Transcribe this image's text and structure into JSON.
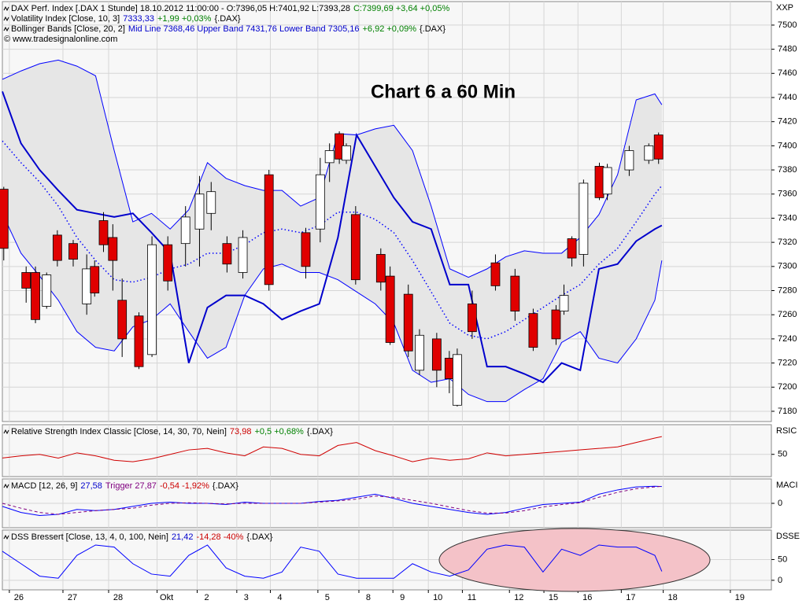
{
  "chart_data": [
    {
      "type": "candlestick",
      "unit_label": "XXP",
      "header": [
        [
          {
            "text": "DAX Perf. Index [.DAX  1 Stunde] 18.10.2012 11:00:00 - O:7396,05 H:7401,92 L:7393,28",
            "color": "#000000"
          },
          {
            "text": "C:7399,69 +3,64 +0,05%",
            "color": "#008000"
          }
        ],
        [
          {
            "text": "Volatility Index [Close, 10, 3]",
            "color": "#000000"
          },
          {
            "text": "7333,33",
            "color": "#0000cc"
          },
          {
            "text": "+1,99 +0,03%",
            "color": "#008000"
          },
          {
            "text": "{.DAX}",
            "color": "#000000"
          }
        ],
        [
          {
            "text": "Bollinger Bands [Close, 20, 2]",
            "color": "#000000"
          },
          {
            "text": "Mid Line 7368,46 Upper Band 7431,76 Lower Band 7305,16",
            "color": "#0000cc"
          },
          {
            "text": "+6,92 +0,09%",
            "color": "#008000"
          },
          {
            "text": "{.DAX}",
            "color": "#000000"
          }
        ]
      ],
      "source": "© www.tradesignalonline.com",
      "annotation": "Chart 6 a 60 Min",
      "xlim": [
        0,
        165
      ],
      "ylim": [
        7171.5,
        7519.5
      ],
      "yticks": [
        7180,
        7200,
        7220,
        7240,
        7260,
        7280,
        7300,
        7320,
        7340,
        7360,
        7380,
        7400,
        7420,
        7440,
        7460,
        7480,
        7500
      ],
      "grid": true,
      "band_fill": "#e6e6e6",
      "up_color": "#ffffff",
      "down_color": "#e00000",
      "candles": {
        "x": [
          0.3,
          5.1,
          7.1,
          9.5,
          11.8,
          15.2,
          18.1,
          19.8,
          21.7,
          23.7,
          25.7,
          29.3,
          32.1,
          35.5,
          39.3,
          42.3,
          44.8,
          48.2,
          51.6,
          57.2,
          65.1,
          68.2,
          70.2,
          72.3,
          73.8,
          75.8,
          81.2,
          83.2,
          87.1,
          89.5,
          93.2,
          95.9,
          97.6,
          100.8,
          105.8,
          110,
          113.9,
          118.8,
          120.5,
          122.2,
          124.7,
          128.1,
          129.8,
          134.5,
          138.7,
          140.8
        ],
        "open": [
          7364,
          7295,
          7295,
          7267,
          7326,
          7319,
          7269,
          7300,
          7338,
          7324,
          7272,
          7259,
          7227,
          7318,
          7319,
          7331,
          7344,
          7319,
          7295,
          7376,
          7328,
          7331,
          7386,
          7410,
          7388,
          7343,
          7310,
          7292,
          7277,
          7214,
          7240,
          7224,
          7185,
          7269,
          7303,
          7292,
          7261,
          7264,
          7263,
          7323,
          7310,
          7383,
          7360,
          7380,
          7388,
          7409
        ],
        "high": [
          7366,
          7300,
          7300,
          7295,
          7330,
          7322,
          7310,
          7305,
          7345,
          7335,
          7290,
          7262,
          7325,
          7325,
          7350,
          7375,
          7370,
          7325,
          7330,
          7380,
          7332,
          7390,
          7402,
          7412,
          7402,
          7350,
          7315,
          7300,
          7285,
          7248,
          7245,
          7230,
          7232,
          7280,
          7310,
          7298,
          7265,
          7268,
          7285,
          7325,
          7372,
          7386,
          7385,
          7400,
          7402,
          7411
        ],
        "low": [
          7305,
          7270,
          7253,
          7265,
          7300,
          7300,
          7260,
          7275,
          7312,
          7280,
          7225,
          7215,
          7225,
          7280,
          7300,
          7300,
          7330,
          7295,
          7290,
          7280,
          7290,
          7320,
          7370,
          7385,
          7385,
          7285,
          7280,
          7235,
          7225,
          7210,
          7200,
          7195,
          7184,
          7240,
          7280,
          7255,
          7230,
          7235,
          7260,
          7300,
          7300,
          7355,
          7355,
          7375,
          7385,
          7385
        ],
        "close": [
          7315,
          7282,
          7256,
          7293,
          7305,
          7306,
          7298,
          7278,
          7318,
          7305,
          7240,
          7217,
          7318,
          7288,
          7341,
          7360,
          7362,
          7302,
          7324,
          7285,
          7300,
          7376,
          7396,
          7389,
          7400,
          7289,
          7287,
          7237,
          7230,
          7243,
          7214,
          7207,
          7227,
          7246,
          7284,
          7263,
          7233,
          7240,
          7276,
          7307,
          7369,
          7357,
          7382,
          7396,
          7400,
          7389
        ]
      },
      "x": [
        0,
        4,
        8,
        12,
        16,
        20,
        24,
        28,
        32,
        36,
        40,
        44,
        48,
        52,
        56,
        60,
        64,
        68,
        72,
        76,
        80,
        84,
        88,
        92,
        96,
        100,
        104,
        108,
        112,
        116,
        120,
        124,
        128,
        132,
        136,
        140,
        141.5
      ],
      "series": [
        {
          "color": "#0000ff",
          "width": 1,
          "dash": "none",
          "values": [
            7455,
            7462,
            7468,
            7471,
            7466,
            7458,
            7396,
            7337,
            7344,
            7331,
            7347,
            7386,
            7373,
            7367,
            7363,
            7363,
            7350,
            7357,
            7410,
            7409,
            7414,
            7417,
            7396,
            7350,
            7298,
            7291,
            7298,
            7308,
            7313,
            7311,
            7311,
            7324,
            7343,
            7376,
            7438,
            7443,
            7434
          ]
        },
        {
          "color": "#0000ff",
          "width": 1,
          "dash": "none",
          "values": [
            7344,
            7311,
            7292,
            7272,
            7246,
            7233,
            7230,
            7250,
            7256,
            7269,
            7246,
            7224,
            7233,
            7276,
            7298,
            7302,
            7295,
            7295,
            7289,
            7279,
            7269,
            7253,
            7214,
            7204,
            7207,
            7194,
            7188,
            7188,
            7198,
            7207,
            7237,
            7246,
            7224,
            7220,
            7240,
            7272,
            7305
          ]
        },
        {
          "color": "#0000ff",
          "width": 1.5,
          "dash": "1.5 3",
          "values": [
            7404,
            7386,
            7370,
            7350,
            7324,
            7305,
            7289,
            7287,
            7291,
            7298,
            7302,
            7311,
            7311,
            7318,
            7328,
            7331,
            7328,
            7334,
            7345,
            7345,
            7339,
            7328,
            7305,
            7279,
            7253,
            7243,
            7240,
            7246,
            7256,
            7266,
            7276,
            7285,
            7302,
            7315,
            7337,
            7360,
            7367
          ]
        },
        {
          "color": "#0000cc",
          "width": 2,
          "dash": "none",
          "values": [
            7445,
            7402,
            7380,
            7363,
            7347,
            7344,
            7341,
            7344,
            7328,
            7311,
            7220,
            7266,
            7276,
            7276,
            7269,
            7256,
            7263,
            7269,
            7324,
            7409,
            7383,
            7357,
            7337,
            7331,
            7285,
            7285,
            7217,
            7217,
            7211,
            7204,
            7220,
            7214,
            7298,
            7302,
            7321,
            7331,
            7334
          ]
        }
      ]
    },
    {
      "type": "line",
      "unit_label": "RSIC",
      "header": [
        [
          {
            "text": "Relative Strength Index Classic [Close, 14, 30, 70, Nein]",
            "color": "#000000"
          },
          {
            "text": "73,98",
            "color": "#cc0000"
          },
          {
            "text": "+0,5 +0,68%",
            "color": "#008000"
          },
          {
            "text": "{.DAX}",
            "color": "#000000"
          }
        ]
      ],
      "xlim": [
        0,
        165
      ],
      "ylim": [
        20,
        90
      ],
      "yticks": [
        50
      ],
      "grid": true,
      "x": [
        0,
        4,
        8,
        12,
        16,
        20,
        24,
        28,
        32,
        36,
        40,
        44,
        48,
        52,
        56,
        60,
        64,
        68,
        72,
        76,
        80,
        84,
        88,
        92,
        96,
        100,
        104,
        108,
        112,
        116,
        120,
        124,
        128,
        132,
        136,
        140,
        141.5
      ],
      "series": [
        {
          "color": "#d00000",
          "width": 1,
          "dash": "none",
          "values": [
            45,
            48,
            50,
            45,
            52,
            48,
            42,
            40,
            44,
            50,
            56,
            58,
            52,
            48,
            60,
            58,
            50,
            48,
            62,
            66,
            55,
            48,
            40,
            45,
            42,
            44,
            52,
            48,
            50,
            52,
            54,
            56,
            58,
            60,
            66,
            72,
            73.98
          ]
        }
      ]
    },
    {
      "type": "line",
      "unit_label": "MACI",
      "header": [
        [
          {
            "text": "MACD [12, 26, 9]",
            "color": "#000000"
          },
          {
            "text": "27,58",
            "color": "#0000cc"
          },
          {
            "text": "Trigger 27,87",
            "color": "#800080"
          },
          {
            "text": "-0,54 -1,92%",
            "color": "#cc0000"
          },
          {
            "text": "{.DAX}",
            "color": "#000000"
          }
        ]
      ],
      "xlim": [
        0,
        165
      ],
      "ylim": [
        -40,
        40
      ],
      "yticks": [
        0
      ],
      "grid": true,
      "x": [
        0,
        4,
        8,
        12,
        16,
        20,
        24,
        28,
        32,
        36,
        40,
        44,
        48,
        52,
        56,
        60,
        64,
        68,
        72,
        76,
        80,
        84,
        88,
        92,
        96,
        100,
        104,
        108,
        112,
        116,
        120,
        124,
        128,
        132,
        136,
        140,
        141.5
      ],
      "series": [
        {
          "color": "#0000ff",
          "width": 1,
          "dash": "none",
          "values": [
            -5,
            -15,
            -20,
            -18,
            -10,
            -12,
            -10,
            -5,
            0,
            2,
            0,
            0,
            -2,
            2,
            0,
            0,
            0,
            3,
            5,
            10,
            15,
            8,
            0,
            -5,
            -10,
            -15,
            -18,
            -15,
            -8,
            -2,
            0,
            2,
            15,
            22,
            27,
            28,
            27.58
          ]
        },
        {
          "color": "#800080",
          "width": 1,
          "dash": "4 3",
          "values": [
            0,
            -8,
            -15,
            -18,
            -15,
            -12,
            -10,
            -8,
            -3,
            0,
            1,
            0,
            -1,
            0,
            0,
            0,
            0,
            2,
            4,
            7,
            12,
            10,
            5,
            0,
            -6,
            -12,
            -16,
            -16,
            -12,
            -6,
            -2,
            1,
            10,
            18,
            24,
            27,
            27.87
          ]
        }
      ]
    },
    {
      "type": "line",
      "unit_label": "DSSE",
      "header": [
        [
          {
            "text": "DSS Bressert [Close, 13, 4, 0, 100, Nein]",
            "color": "#000000"
          },
          {
            "text": "21,42",
            "color": "#0000cc"
          },
          {
            "text": "-14,28 -40%",
            "color": "#cc0000"
          },
          {
            "text": "{.DAX}",
            "color": "#000000"
          }
        ]
      ],
      "xlim": [
        0,
        165
      ],
      "ylim": [
        -23,
        121
      ],
      "yticks": [
        0,
        50
      ],
      "grid": true,
      "xticks": [
        {
          "value": 1.5,
          "label": "26"
        },
        {
          "value": 13,
          "label": "27"
        },
        {
          "value": 22.8,
          "label": "28"
        },
        {
          "value": 33.2,
          "label": "Okt"
        },
        {
          "value": 41.8,
          "label": "2"
        },
        {
          "value": 50.3,
          "label": "3"
        },
        {
          "value": 57.5,
          "label": "4"
        },
        {
          "value": 67.7,
          "label": "5"
        },
        {
          "value": 76.5,
          "label": "8"
        },
        {
          "value": 83.8,
          "label": "9"
        },
        {
          "value": 91.4,
          "label": "10"
        },
        {
          "value": 98.7,
          "label": "11"
        },
        {
          "value": 108.8,
          "label": "12"
        },
        {
          "value": 116.2,
          "label": "15"
        },
        {
          "value": 123.5,
          "label": "16"
        },
        {
          "value": 132.8,
          "label": "17"
        },
        {
          "value": 141.8,
          "label": "18"
        },
        {
          "value": 156.2,
          "label": "19"
        }
      ],
      "x": [
        0,
        4,
        8,
        12,
        16,
        20,
        24,
        28,
        32,
        36,
        40,
        44,
        48,
        52,
        56,
        60,
        64,
        68,
        72,
        76,
        80,
        84,
        88,
        92,
        96,
        100,
        104,
        108,
        112,
        116,
        120,
        124,
        128,
        132,
        136,
        140,
        141.5
      ],
      "series": [
        {
          "color": "#0000ff",
          "width": 1,
          "dash": "none",
          "values": [
            70,
            40,
            10,
            5,
            60,
            85,
            80,
            40,
            15,
            10,
            60,
            85,
            30,
            10,
            5,
            20,
            80,
            70,
            15,
            5,
            5,
            5,
            40,
            20,
            10,
            25,
            75,
            85,
            80,
            20,
            75,
            60,
            85,
            80,
            80,
            60,
            21.42
          ]
        }
      ]
    }
  ]
}
